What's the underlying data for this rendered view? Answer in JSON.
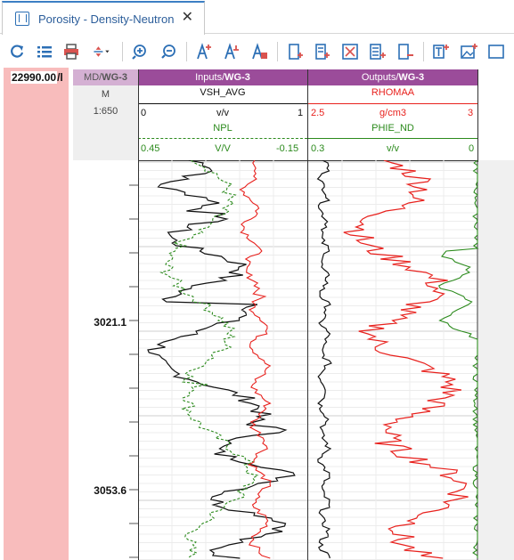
{
  "tab": {
    "title": "Porosity - Density-Neutron",
    "close": "✕"
  },
  "toolbar": {
    "items": [
      "refresh-icon",
      "list-icon",
      "print-icon",
      "vertical-scale-dropdown-icon",
      "zoom-in-icon",
      "zoom-out-icon",
      "add-track-icon",
      "add-text-track-icon",
      "add-depth-track-icon",
      "add-curve-icon",
      "add-shading-icon",
      "add-lithology-icon",
      "add-bar-icon",
      "remove-track-icon",
      "add-text-box-icon",
      "add-image-icon",
      "more-icon"
    ]
  },
  "depth_readout": {
    "value": "22990.00",
    "suffix": "/l"
  },
  "tracks": {
    "md": {
      "title": "MD/",
      "title_bold": "WG-3",
      "unit": "M",
      "scale": "1:650"
    },
    "inputs": {
      "title": "Inputs/",
      "title_bold": "WG-3",
      "curve1": {
        "name": "VSH_AVG",
        "left": "0",
        "unit": "v/v",
        "right": "1"
      },
      "curve2": {
        "name": "NPL",
        "left": "0.45",
        "unit": "V/V",
        "right": "-0.15"
      }
    },
    "outputs": {
      "title": "Outputs/",
      "title_bold": "WG-3",
      "curve1": {
        "name": "RHOMAA",
        "left": "2.5",
        "unit": "g/cm3",
        "right": "3"
      },
      "curve2": {
        "name": "PHIE_ND",
        "left": "0.3",
        "unit": "v/v",
        "right": "0"
      }
    }
  },
  "depth_labels": [
    "3021.1",
    "3053.6"
  ],
  "colors": {
    "black": "#111111",
    "red": "#e8211d",
    "green": "#2b8a1c",
    "pink": "#f8bcbc",
    "track_header": "#9b4c9a"
  }
}
